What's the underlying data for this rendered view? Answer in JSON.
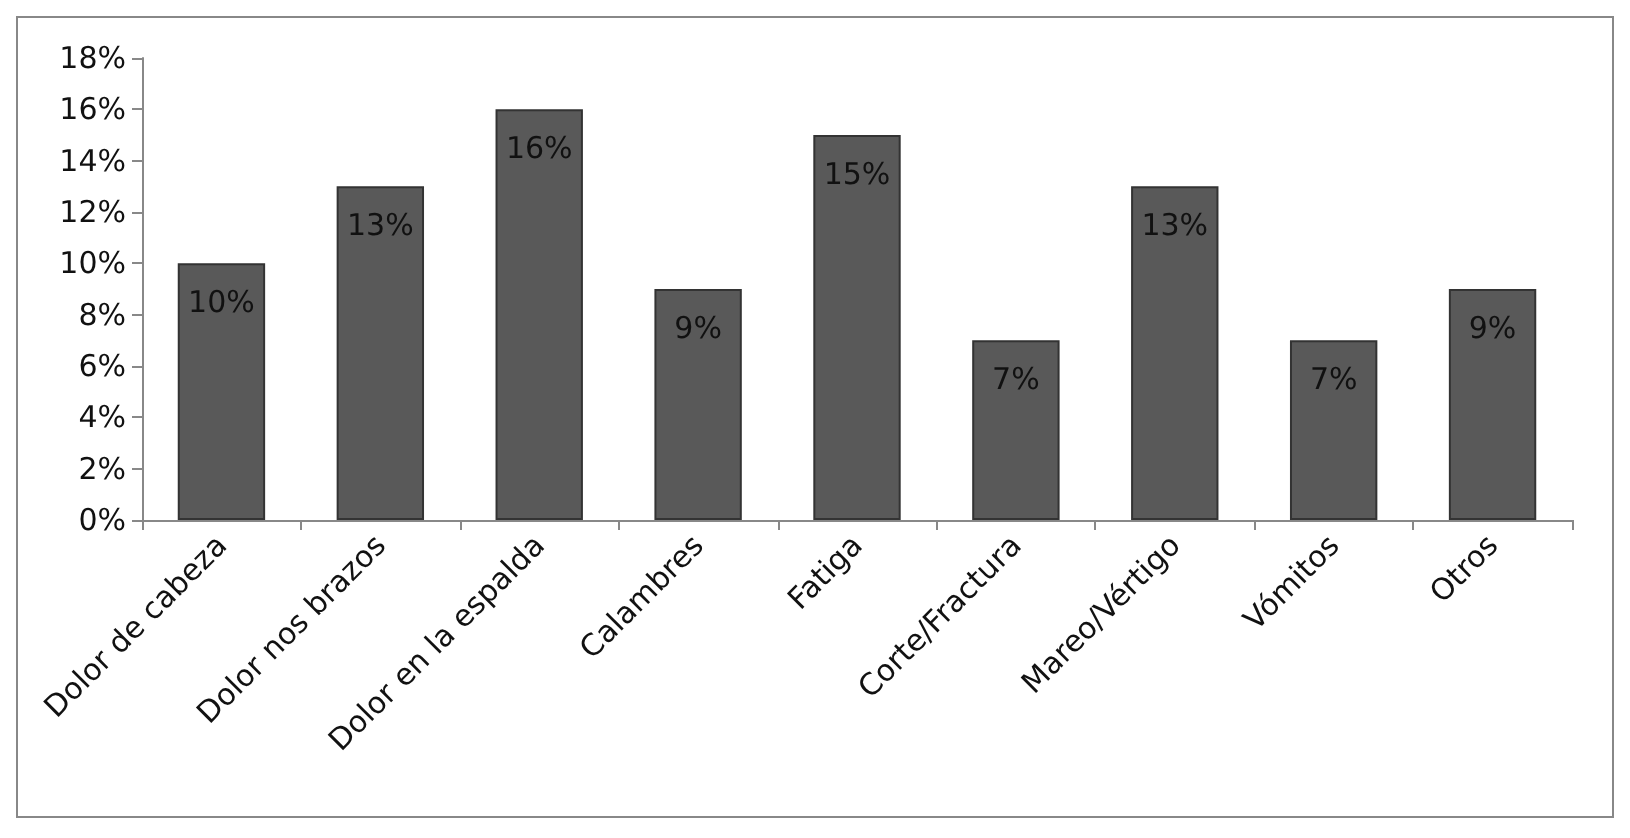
{
  "chart_data": {
    "type": "bar",
    "categories": [
      "Dolor de cabeza",
      "Dolor nos brazos",
      "Dolor en la espalda",
      "Calambres",
      "Fatiga",
      "Corte/Fractura",
      "Mareo/Vértigo",
      "Vómitos",
      "Otros"
    ],
    "values": [
      10,
      13,
      16,
      9,
      15,
      7,
      13,
      7,
      9
    ],
    "value_labels": [
      "10%",
      "13%",
      "16%",
      "9%",
      "15%",
      "7%",
      "13%",
      "7%",
      "9%"
    ],
    "color": "#595959",
    "ylim": [
      0,
      18
    ],
    "yticks": [
      {
        "value": 0,
        "label": "0%"
      },
      {
        "value": 2,
        "label": "2%"
      },
      {
        "value": 4,
        "label": "4%"
      },
      {
        "value": 6,
        "label": "6%"
      },
      {
        "value": 8,
        "label": "8%"
      },
      {
        "value": 10,
        "label": "10%"
      },
      {
        "value": 12,
        "label": "12%"
      },
      {
        "value": 14,
        "label": "14%"
      },
      {
        "value": 16,
        "label": "16%"
      },
      {
        "value": 18,
        "label": "18%"
      }
    ],
    "tick_labels": "xy"
  }
}
